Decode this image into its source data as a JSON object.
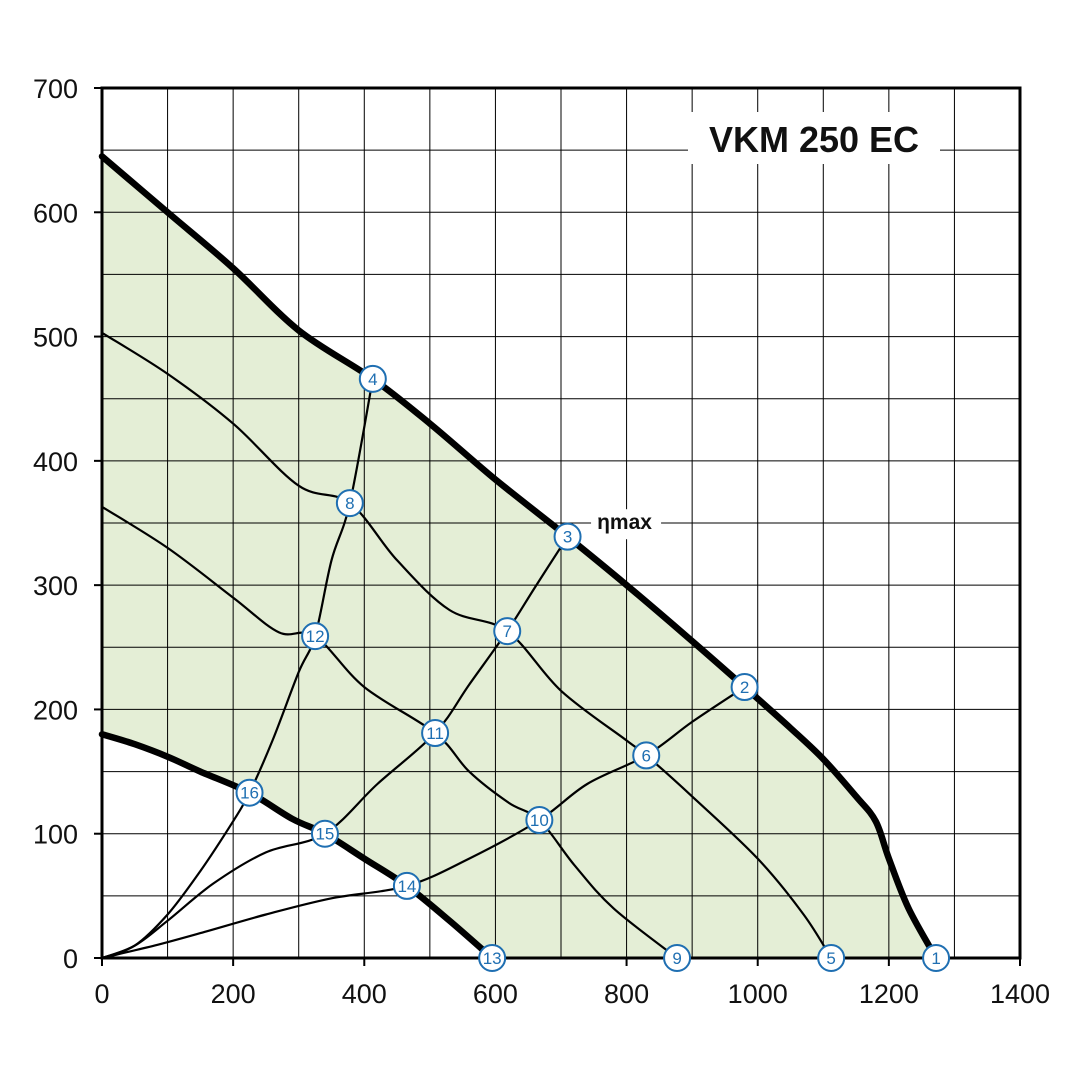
{
  "chart_data": {
    "type": "line",
    "title": "VKM 250 EC",
    "xlabel": "",
    "ylabel": "",
    "xlim": [
      0,
      1400
    ],
    "ylim": [
      0,
      700
    ],
    "x_ticks": [
      0,
      200,
      400,
      600,
      800,
      1000,
      1200,
      1400
    ],
    "y_ticks": [
      0,
      100,
      200,
      300,
      400,
      500,
      600,
      700
    ],
    "grid": true,
    "fill_color": "#e4eed6",
    "marker_color": "#1f6fb2",
    "curve_color": "#000000",
    "annotation": {
      "text": "ηmax",
      "x": 755,
      "y": 345
    },
    "region": {
      "upper": [
        [
          0,
          645
        ],
        [
          100,
          600
        ],
        [
          200,
          555
        ],
        [
          300,
          505
        ],
        [
          413,
          466
        ],
        [
          500,
          430
        ],
        [
          600,
          385
        ],
        [
          710,
          339
        ],
        [
          800,
          300
        ],
        [
          900,
          255
        ],
        [
          980,
          218
        ],
        [
          1050,
          185
        ],
        [
          1100,
          160
        ],
        [
          1150,
          130
        ],
        [
          1180,
          110
        ],
        [
          1200,
          80
        ],
        [
          1230,
          40
        ],
        [
          1272,
          0
        ]
      ],
      "lower": [
        [
          0,
          180
        ],
        [
          50,
          172
        ],
        [
          100,
          162
        ],
        [
          150,
          150
        ],
        [
          225,
          133
        ],
        [
          290,
          112
        ],
        [
          340,
          100
        ],
        [
          400,
          80
        ],
        [
          465,
          58
        ],
        [
          530,
          30
        ],
        [
          595,
          0
        ]
      ]
    },
    "series": [
      {
        "kind": "system",
        "points": [
          [
            0,
            645
          ],
          [
            100,
            600
          ],
          [
            200,
            555
          ],
          [
            300,
            505
          ],
          [
            413,
            466
          ],
          [
            500,
            430
          ],
          [
            600,
            385
          ],
          [
            710,
            339
          ],
          [
            800,
            300
          ],
          [
            900,
            255
          ],
          [
            980,
            218
          ],
          [
            1050,
            185
          ],
          [
            1100,
            160
          ],
          [
            1150,
            130
          ],
          [
            1180,
            110
          ],
          [
            1200,
            80
          ],
          [
            1230,
            40
          ],
          [
            1272,
            0
          ]
        ]
      },
      {
        "kind": "system",
        "points": [
          [
            0,
            503
          ],
          [
            100,
            470
          ],
          [
            200,
            430
          ],
          [
            300,
            380
          ],
          [
            378,
            366
          ],
          [
            450,
            320
          ],
          [
            530,
            280
          ],
          [
            618,
            263
          ],
          [
            700,
            215
          ],
          [
            800,
            175
          ],
          [
            830,
            163
          ],
          [
            900,
            130
          ],
          [
            1000,
            80
          ],
          [
            1070,
            35
          ],
          [
            1112,
            0
          ]
        ]
      },
      {
        "kind": "system",
        "points": [
          [
            0,
            363
          ],
          [
            100,
            330
          ],
          [
            200,
            290
          ],
          [
            270,
            262
          ],
          [
            325,
            259
          ],
          [
            400,
            218
          ],
          [
            508,
            181
          ],
          [
            560,
            150
          ],
          [
            620,
            125
          ],
          [
            667,
            111
          ],
          [
            720,
            75
          ],
          [
            780,
            40
          ],
          [
            877,
            0
          ]
        ]
      },
      {
        "kind": "system",
        "points": [
          [
            0,
            180
          ],
          [
            50,
            172
          ],
          [
            100,
            162
          ],
          [
            150,
            150
          ],
          [
            225,
            133
          ],
          [
            290,
            112
          ],
          [
            340,
            100
          ],
          [
            400,
            80
          ],
          [
            465,
            58
          ],
          [
            530,
            30
          ],
          [
            595,
            0
          ]
        ]
      },
      {
        "kind": "rpm",
        "points": [
          [
            0,
            0
          ],
          [
            50,
            10
          ],
          [
            100,
            35
          ],
          [
            150,
            70
          ],
          [
            200,
            110
          ],
          [
            225,
            133
          ],
          [
            260,
            175
          ],
          [
            300,
            230
          ],
          [
            325,
            259
          ],
          [
            350,
            320
          ],
          [
            378,
            366
          ],
          [
            413,
            466
          ]
        ]
      },
      {
        "kind": "rpm",
        "points": [
          [
            0,
            0
          ],
          [
            50,
            10
          ],
          [
            100,
            30
          ],
          [
            170,
            60
          ],
          [
            250,
            85
          ],
          [
            340,
            100
          ],
          [
            420,
            140
          ],
          [
            508,
            181
          ],
          [
            560,
            220
          ],
          [
            618,
            263
          ],
          [
            660,
            298
          ],
          [
            710,
            339
          ]
        ]
      },
      {
        "kind": "rpm",
        "points": [
          [
            0,
            0
          ],
          [
            80,
            10
          ],
          [
            150,
            20
          ],
          [
            250,
            35
          ],
          [
            350,
            48
          ],
          [
            465,
            58
          ],
          [
            560,
            80
          ],
          [
            667,
            111
          ],
          [
            740,
            140
          ],
          [
            830,
            163
          ],
          [
            900,
            190
          ],
          [
            980,
            218
          ]
        ]
      }
    ],
    "markers": [
      {
        "label": "1",
        "x": 1272,
        "y": 0
      },
      {
        "label": "2",
        "x": 980,
        "y": 218
      },
      {
        "label": "3",
        "x": 710,
        "y": 339
      },
      {
        "label": "4",
        "x": 413,
        "y": 466
      },
      {
        "label": "5",
        "x": 1112,
        "y": 0
      },
      {
        "label": "6",
        "x": 830,
        "y": 163
      },
      {
        "label": "7",
        "x": 618,
        "y": 263
      },
      {
        "label": "8",
        "x": 378,
        "y": 366
      },
      {
        "label": "9",
        "x": 877,
        "y": 0
      },
      {
        "label": "10",
        "x": 667,
        "y": 111
      },
      {
        "label": "11",
        "x": 508,
        "y": 181
      },
      {
        "label": "12",
        "x": 325,
        "y": 259
      },
      {
        "label": "13",
        "x": 595,
        "y": 0
      },
      {
        "label": "14",
        "x": 465,
        "y": 58
      },
      {
        "label": "15",
        "x": 340,
        "y": 100
      },
      {
        "label": "16",
        "x": 225,
        "y": 133
      }
    ]
  }
}
